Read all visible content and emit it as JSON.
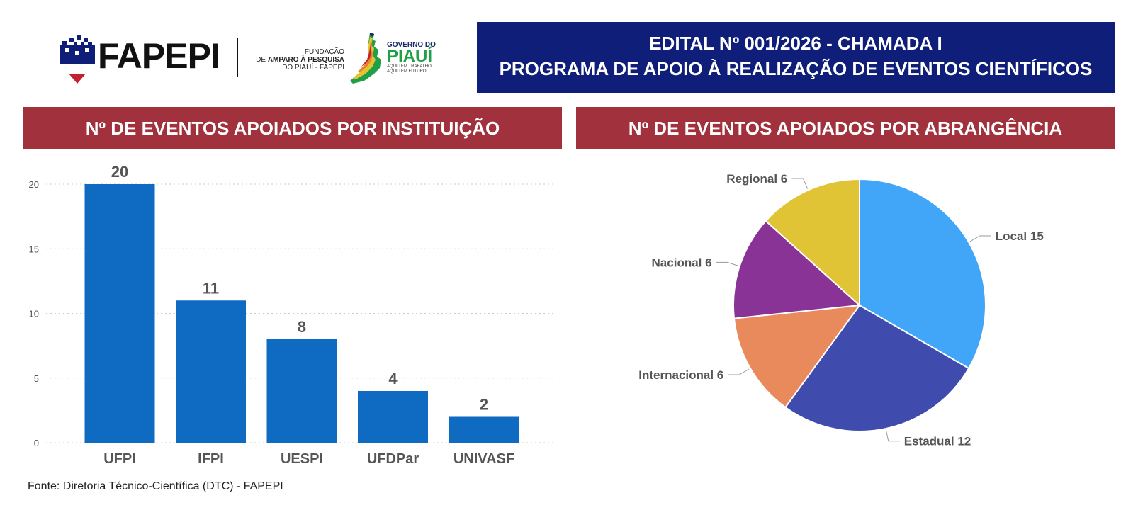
{
  "header": {
    "fapepi_logo": "FAPEPI",
    "foundation_line1": "FUNDAÇÃO",
    "foundation_line2_prefix": "DE ",
    "foundation_line2_bold": "AMPARO À PESQUISA",
    "foundation_line3": "DO PIAUÍ - FAPEPI",
    "gov_line1": "GOVERNO DO",
    "gov_line2": "PIAUÍ",
    "gov_line3": "AQUI TEM TRABALHO.",
    "gov_line4": "AQUI TEM FUTURO.",
    "title_line1": "EDITAL Nº 001/2026 - CHAMADA I",
    "title_line2": "PROGRAMA DE APOIO À REALIZAÇÃO DE EVENTOS CIENTÍFICOS"
  },
  "panels": {
    "bar_title": "Nº DE EVENTOS APOIADOS POR INSTITUIÇÃO",
    "pie_title": "Nº DE EVENTOS APOIADOS POR ABRANGÊNCIA"
  },
  "footer": {
    "source": "Fonte: Diretoria Técnico-Científica (DTC) - FAPEPI"
  },
  "chart_data": [
    {
      "type": "bar",
      "title": "Nº DE EVENTOS APOIADOS POR INSTITUIÇÃO",
      "categories": [
        "UFPI",
        "IFPI",
        "UESPI",
        "UFDPar",
        "UNIVASF"
      ],
      "values": [
        20,
        11,
        8,
        4,
        2
      ],
      "xlabel": "",
      "ylabel": "",
      "ylim": [
        0,
        20
      ],
      "yticks": [
        0,
        5,
        10,
        15,
        20
      ],
      "grid": true,
      "color": "#0f6bc1"
    },
    {
      "type": "pie",
      "title": "Nº DE EVENTOS APOIADOS POR ABRANGÊNCIA",
      "labels": [
        "Local",
        "Estadual",
        "Internacional",
        "Nacional",
        "Regional"
      ],
      "values": [
        15,
        12,
        6,
        6,
        6
      ],
      "colors": [
        "#41a5f8",
        "#3f4cae",
        "#e98a5c",
        "#883395",
        "#e0c436"
      ]
    }
  ]
}
